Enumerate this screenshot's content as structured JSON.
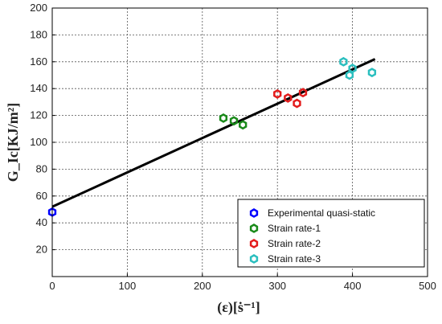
{
  "chart_data": {
    "type": "scatter",
    "xlabel": "(ε)[ṡ⁻¹]",
    "ylabel": "G_Ic[KJ/m²]",
    "xlim": [
      0,
      500
    ],
    "ylim": [
      0,
      200
    ],
    "xticks": [
      0,
      100,
      200,
      300,
      400,
      500
    ],
    "yticks": [
      20,
      40,
      60,
      80,
      100,
      120,
      140,
      160,
      180,
      200
    ],
    "grid": true,
    "legend_position": "bottom-right",
    "series": [
      {
        "name": "Experimental quasi-static",
        "color": "#0000ff",
        "points": [
          [
            0,
            48
          ]
        ]
      },
      {
        "name": "Strain rate-1",
        "color": "#1a8a1a",
        "points": [
          [
            228,
            118
          ],
          [
            242,
            116
          ],
          [
            254,
            113
          ]
        ]
      },
      {
        "name": "Strain rate-2",
        "color": "#e31c1c",
        "points": [
          [
            300,
            136
          ],
          [
            314,
            133
          ],
          [
            326,
            129
          ],
          [
            334,
            137
          ]
        ]
      },
      {
        "name": "Strain rate-3",
        "color": "#2bbfbf",
        "points": [
          [
            388,
            160
          ],
          [
            396,
            150
          ],
          [
            400,
            155
          ],
          [
            426,
            152
          ]
        ]
      }
    ],
    "fit_line": {
      "color": "#000000",
      "points": [
        [
          0,
          52
        ],
        [
          430,
          162
        ]
      ]
    }
  }
}
